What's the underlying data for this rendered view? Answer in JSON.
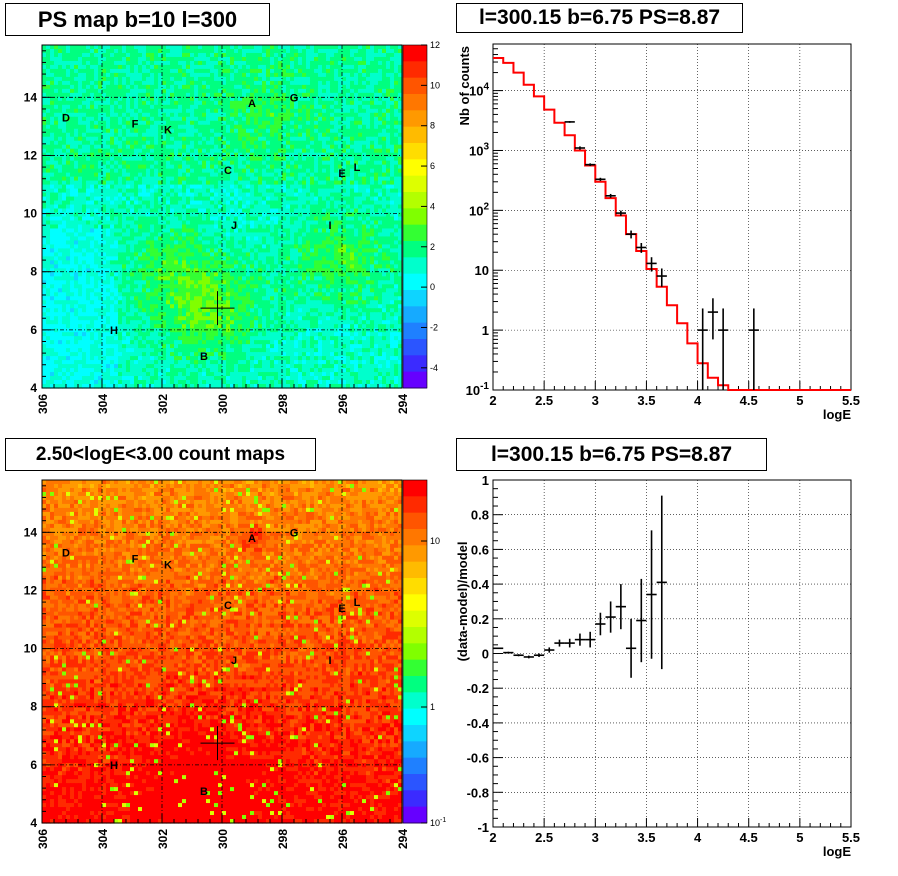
{
  "chart_data": [
    {
      "type": "heatmap",
      "title": "PS map b=10 l=300",
      "xlabel": "",
      "ylabel": "",
      "x_ticks": [
        "306",
        "304",
        "302",
        "300",
        "298",
        "296",
        "294"
      ],
      "y_ticks": [
        "4",
        "6",
        "8",
        "10",
        "12",
        "14"
      ],
      "xlim": [
        306,
        294
      ],
      "ylim": [
        4,
        15.8
      ],
      "colorbar_ticks": [
        "12",
        "10",
        "8",
        "6",
        "4",
        "2",
        "0",
        "-2",
        "-4"
      ],
      "colorbar_range": [
        -5,
        12
      ],
      "grid": true,
      "sources": [
        {
          "label": "A",
          "l": 299,
          "b": 13.8
        },
        {
          "label": "G",
          "l": 297.6,
          "b": 14.0
        },
        {
          "label": "D",
          "l": 305.2,
          "b": 13.3
        },
        {
          "label": "F",
          "l": 302.9,
          "b": 13.1
        },
        {
          "label": "K",
          "l": 301.8,
          "b": 12.9
        },
        {
          "label": "C",
          "l": 299.8,
          "b": 11.5
        },
        {
          "label": "E",
          "l": 296,
          "b": 11.4
        },
        {
          "label": "L",
          "l": 295.5,
          "b": 11.6
        },
        {
          "label": "J",
          "l": 299.6,
          "b": 9.6
        },
        {
          "label": "I",
          "l": 296.4,
          "b": 9.6
        },
        {
          "label": "H",
          "l": 303.6,
          "b": 6.0
        },
        {
          "label": "B",
          "l": 300.6,
          "b": 5.1
        }
      ],
      "cross": {
        "l": 300.15,
        "b": 6.75
      }
    },
    {
      "type": "line",
      "title": "l=300.15 b=6.75 PS=8.87",
      "xlabel": "logE",
      "ylabel": "Nb of counts",
      "xlim": [
        2,
        5.5
      ],
      "ylim": [
        0.1,
        60000
      ],
      "yscale": "log",
      "x_ticks": [
        "2",
        "2.5",
        "3",
        "3.5",
        "4",
        "4.5",
        "5",
        "5.5"
      ],
      "y_ticks": [
        "10^4",
        "10^3",
        "10^2",
        "10",
        "1",
        "10^-1"
      ],
      "grid": true,
      "model_color": "#ff0000",
      "model_edges": [
        2,
        2.1,
        2.2,
        2.3,
        2.4,
        2.5,
        2.6,
        2.7,
        2.8,
        2.9,
        3,
        3.1,
        3.2,
        3.3,
        3.4,
        3.5,
        3.6,
        3.7,
        3.8,
        3.9,
        4,
        4.1,
        4.2,
        4.3,
        4.4,
        4.5,
        4.6,
        4.7,
        4.8,
        4.9,
        5,
        5.1,
        5.2,
        5.3,
        5.4,
        5.5
      ],
      "model_values": [
        35000,
        29000,
        20000,
        12500,
        8000,
        4800,
        2900,
        1800,
        1000,
        560,
        300,
        160,
        82,
        40,
        21,
        10.5,
        5.3,
        2.6,
        1.3,
        0.6,
        0.28,
        0.16,
        0.12,
        0.1,
        0.1,
        0.1,
        0.1,
        0.1,
        0.1,
        0.1,
        0.1,
        0.1,
        0.1,
        0.1,
        0.1
      ],
      "data_points": [
        {
          "x": 2.75,
          "y": 3000,
          "lo": 2900,
          "hi": 3100
        },
        {
          "x": 2.85,
          "y": 1100,
          "lo": 1030,
          "hi": 1170
        },
        {
          "x": 2.95,
          "y": 580,
          "lo": 550,
          "hi": 610
        },
        {
          "x": 3.05,
          "y": 330,
          "lo": 310,
          "hi": 350
        },
        {
          "x": 3.15,
          "y": 175,
          "lo": 162,
          "hi": 188
        },
        {
          "x": 3.25,
          "y": 90,
          "lo": 81,
          "hi": 99
        },
        {
          "x": 3.35,
          "y": 40,
          "lo": 34,
          "hi": 46
        },
        {
          "x": 3.45,
          "y": 24,
          "lo": 19.5,
          "hi": 28.5
        },
        {
          "x": 3.55,
          "y": 13,
          "lo": 9.5,
          "hi": 16.5
        },
        {
          "x": 3.65,
          "y": 8,
          "lo": 5.3,
          "hi": 10.7
        },
        {
          "x": 4.05,
          "y": 1,
          "lo": 0.1,
          "hi": 2.3
        },
        {
          "x": 4.15,
          "y": 2,
          "lo": 0.7,
          "hi": 3.4
        },
        {
          "x": 4.25,
          "y": 1,
          "lo": 0.1,
          "hi": 2.3
        },
        {
          "x": 4.55,
          "y": 1,
          "lo": 0.1,
          "hi": 2.3
        }
      ]
    },
    {
      "type": "heatmap",
      "title": "2.50<logE<3.00 count maps",
      "xlabel": "",
      "ylabel": "",
      "x_ticks": [
        "306",
        "304",
        "302",
        "300",
        "298",
        "296",
        "294"
      ],
      "y_ticks": [
        "4",
        "6",
        "8",
        "10",
        "12",
        "14"
      ],
      "xlim": [
        306,
        294
      ],
      "ylim": [
        4,
        15.8
      ],
      "colorbar_ticks": [
        "10",
        "1",
        "10^-1"
      ],
      "colorbar_scale": "log",
      "grid": true
    },
    {
      "type": "scatter",
      "title": "l=300.15 b=6.75 PS=8.87",
      "xlabel": "logE",
      "ylabel": "(data-model)/model",
      "xlim": [
        2,
        5.5
      ],
      "ylim": [
        -1,
        1
      ],
      "x_ticks": [
        "2",
        "2.5",
        "3",
        "3.5",
        "4",
        "4.5",
        "5",
        "5.5"
      ],
      "y_ticks": [
        "1",
        "0.8",
        "0.6",
        "0.4",
        "0.2",
        "0",
        "-0.2",
        "-0.4",
        "-0.6",
        "-0.8",
        "-1"
      ],
      "grid": true,
      "data_points": [
        {
          "x": 2.05,
          "y": 0.03,
          "err": 0.004
        },
        {
          "x": 2.15,
          "y": 0.005,
          "err": 0.005
        },
        {
          "x": 2.25,
          "y": -0.01,
          "err": 0.006
        },
        {
          "x": 2.35,
          "y": -0.02,
          "err": 0.008
        },
        {
          "x": 2.45,
          "y": -0.01,
          "err": 0.01
        },
        {
          "x": 2.55,
          "y": 0.02,
          "err": 0.015
        },
        {
          "x": 2.65,
          "y": 0.06,
          "err": 0.02
        },
        {
          "x": 2.75,
          "y": 0.06,
          "err": 0.025
        },
        {
          "x": 2.85,
          "y": 0.08,
          "err": 0.035
        },
        {
          "x": 2.95,
          "y": 0.08,
          "err": 0.045
        },
        {
          "x": 3.05,
          "y": 0.17,
          "err": 0.065
        },
        {
          "x": 3.15,
          "y": 0.21,
          "err": 0.09
        },
        {
          "x": 3.25,
          "y": 0.27,
          "err": 0.13
        },
        {
          "x": 3.35,
          "y": 0.03,
          "err": 0.17
        },
        {
          "x": 3.45,
          "y": 0.19,
          "err": 0.24
        },
        {
          "x": 3.55,
          "y": 0.34,
          "err": 0.37
        },
        {
          "x": 3.65,
          "y": 0.41,
          "err": 0.5
        }
      ]
    }
  ]
}
